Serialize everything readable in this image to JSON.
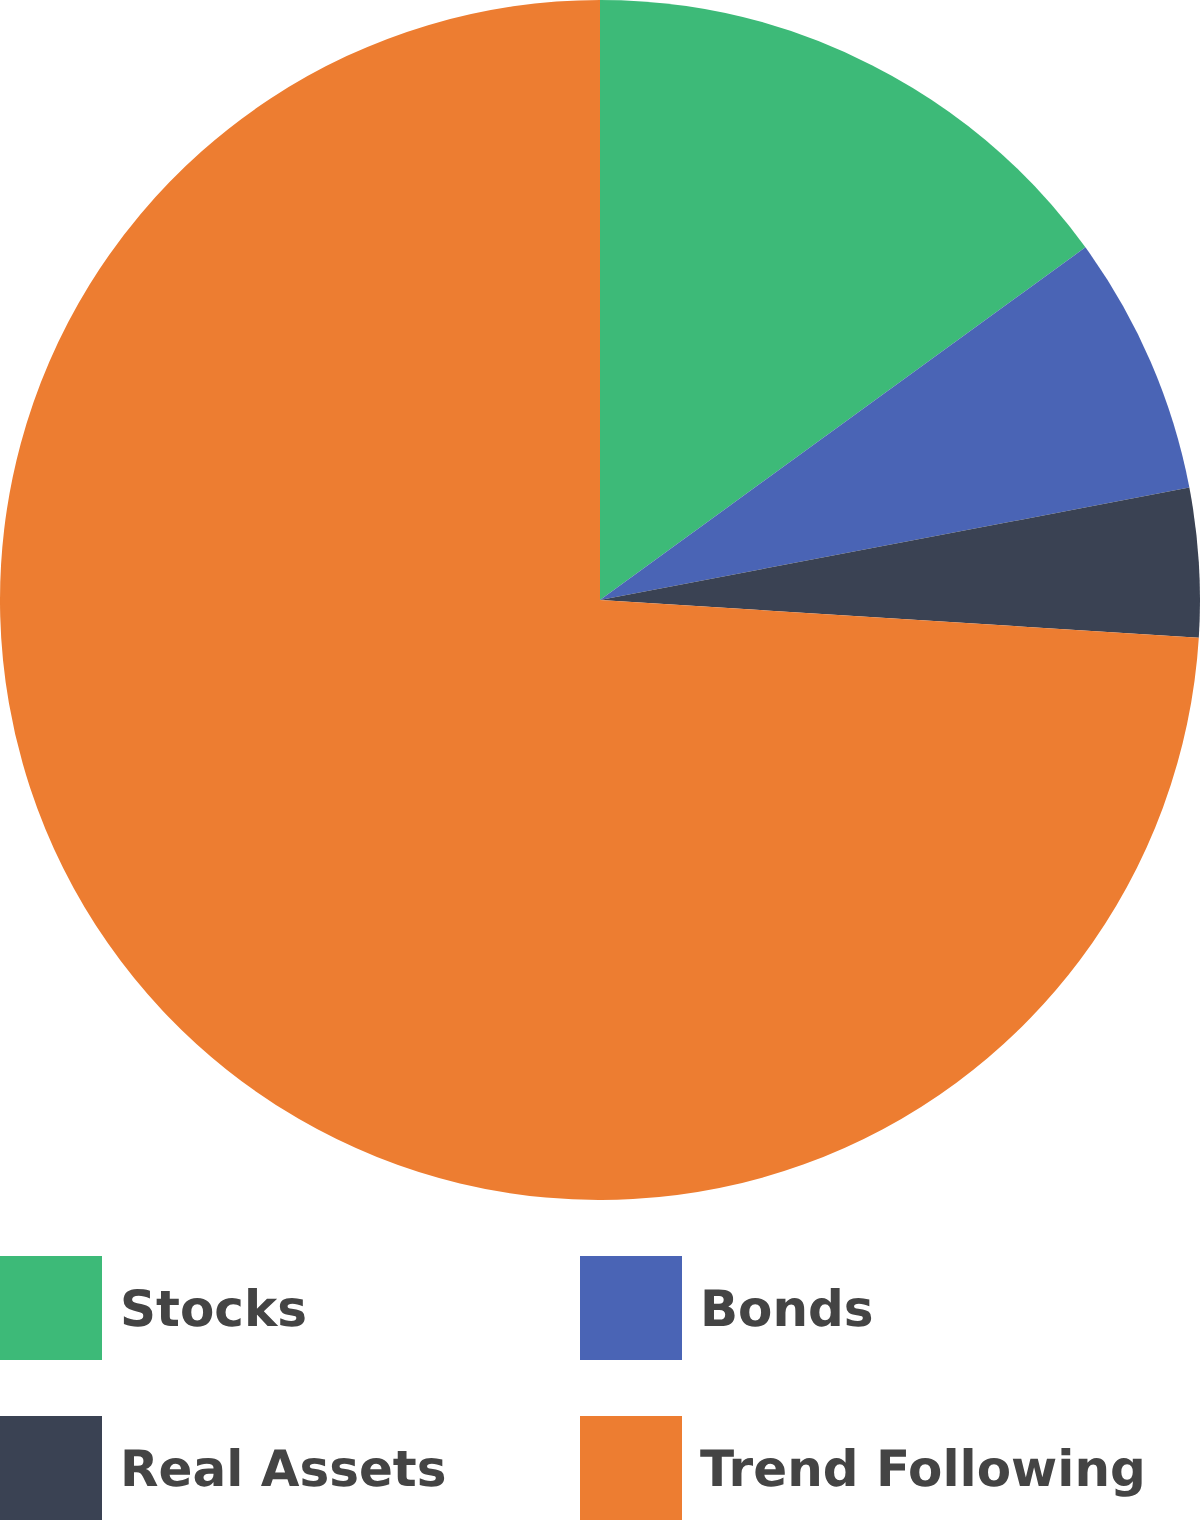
{
  "chart_data": {
    "type": "pie",
    "categories": [
      "Stocks",
      "Bonds",
      "Real Assets",
      "Trend Following"
    ],
    "values": [
      15,
      7,
      4,
      74
    ],
    "colors": [
      "#3dba78",
      "#4a64b5",
      "#3a4253",
      "#ed7d31"
    ],
    "legend": "bottom"
  }
}
